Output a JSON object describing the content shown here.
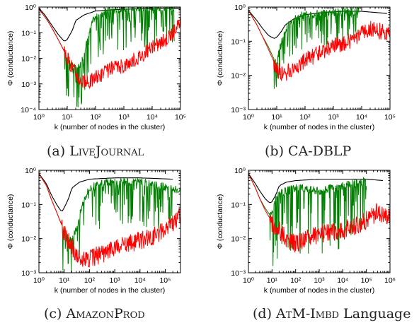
{
  "captions": [
    {
      "prefix": "(a) ",
      "name": "LiveJournal",
      "suffix": ""
    },
    {
      "prefix": "(b) ",
      "name": "",
      "suffix": "CA-DBLP"
    },
    {
      "prefix": "(c) ",
      "name": "AmazonProd",
      "suffix": ""
    },
    {
      "prefix": "(d) ",
      "name": "AtM-Imbd",
      "suffix": " Language"
    }
  ],
  "chart_data": [
    {
      "id": "a",
      "type": "line",
      "xlabel": "k (number of nodes in the cluster)",
      "ylabel": "Φ (conductance)",
      "xscale": "log",
      "yscale": "log",
      "xlim": [
        1,
        100000
      ],
      "ylim": [
        0.0001,
        1
      ],
      "xticks": [
        "10⁰",
        "10¹",
        "10²",
        "10³",
        "10⁴",
        "10⁵"
      ],
      "yticks": [
        "10⁻⁴",
        "10⁻³",
        "10⁻²",
        "10⁻¹",
        "10⁰"
      ],
      "series": [
        {
          "color": "#000000",
          "x": [
            1,
            1.5,
            2,
            3,
            5,
            8,
            10,
            15,
            20,
            40,
            100,
            500,
            3000,
            20000,
            100000
          ],
          "y": [
            0.9,
            0.55,
            0.35,
            0.18,
            0.08,
            0.045,
            0.055,
            0.12,
            0.3,
            0.5,
            0.7,
            0.8,
            0.85,
            0.9,
            0.88
          ]
        },
        {
          "color": "#008000",
          "noise": 1.3,
          "x": [
            1,
            2,
            3,
            5,
            8,
            12,
            20,
            30,
            50,
            80,
            150,
            300,
            1000,
            5000,
            60000
          ],
          "y": [
            0.85,
            0.3,
            0.14,
            0.05,
            0.018,
            0.008,
            0.004,
            0.006,
            0.05,
            0.3,
            0.6,
            0.75,
            0.85,
            0.9,
            0.92
          ]
        },
        {
          "color": "#ff0000",
          "noise": 0.6,
          "x": [
            1,
            2,
            3,
            5,
            8,
            12,
            20,
            30,
            50,
            100,
            300,
            1000,
            3000,
            10000,
            30000,
            100000
          ],
          "y": [
            0.85,
            0.3,
            0.14,
            0.05,
            0.018,
            0.008,
            0.003,
            0.0015,
            0.0012,
            0.002,
            0.004,
            0.006,
            0.012,
            0.03,
            0.06,
            0.25
          ]
        }
      ]
    },
    {
      "id": "b",
      "type": "line",
      "xlabel": "k (number of nodes in the cluster)",
      "ylabel": "Φ (conductance)",
      "xscale": "log",
      "yscale": "log",
      "xlim": [
        1,
        100000
      ],
      "ylim": [
        0.001,
        1
      ],
      "xticks": [
        "10⁰",
        "10¹",
        "10²",
        "10³",
        "10⁴",
        "10⁵"
      ],
      "yticks": [
        "10⁻³",
        "10⁻²",
        "10⁻¹",
        "10⁰"
      ],
      "series": [
        {
          "color": "#000000",
          "x": [
            1,
            2,
            3,
            5,
            8,
            10,
            15,
            20,
            40,
            100,
            500,
            2000,
            10000,
            80000
          ],
          "y": [
            0.8,
            0.4,
            0.25,
            0.15,
            0.12,
            0.13,
            0.2,
            0.3,
            0.45,
            0.6,
            0.7,
            0.75,
            0.75,
            0.65
          ]
        },
        {
          "color": "#008000",
          "noise": 0.8,
          "x": [
            1,
            2,
            3,
            5,
            8,
            10,
            15,
            25,
            50,
            100,
            300,
            1000,
            8000
          ],
          "y": [
            0.8,
            0.3,
            0.15,
            0.07,
            0.03,
            0.025,
            0.1,
            0.3,
            0.5,
            0.6,
            0.65,
            0.7,
            0.75
          ]
        },
        {
          "color": "#ff0000",
          "noise": 0.5,
          "x": [
            1,
            2,
            3,
            5,
            8,
            10,
            15,
            20,
            30,
            50,
            100,
            300,
            1000,
            5000,
            20000,
            100000
          ],
          "y": [
            0.8,
            0.3,
            0.15,
            0.06,
            0.025,
            0.018,
            0.013,
            0.012,
            0.015,
            0.02,
            0.03,
            0.05,
            0.08,
            0.12,
            0.25,
            0.2
          ]
        }
      ]
    },
    {
      "id": "c",
      "type": "line",
      "xlabel": "k (number of nodes in the cluster)",
      "ylabel": "Φ (conductance)",
      "xscale": "log",
      "yscale": "log",
      "xlim": [
        1,
        400000
      ],
      "ylim": [
        0.001,
        1
      ],
      "xticks": [
        "10⁰",
        "10¹",
        "10²",
        "10³",
        "10⁴",
        "10⁵"
      ],
      "yticks": [
        "10⁻³",
        "10⁻²",
        "10⁻¹",
        "10⁰"
      ],
      "series": [
        {
          "color": "#000000",
          "x": [
            1,
            2,
            3,
            5,
            8,
            10,
            15,
            20,
            40,
            100,
            1000,
            10000,
            200000
          ],
          "y": [
            0.8,
            0.4,
            0.2,
            0.1,
            0.06,
            0.08,
            0.15,
            0.3,
            0.45,
            0.55,
            0.6,
            0.6,
            0.55
          ]
        },
        {
          "color": "#008000",
          "noise": 1.0,
          "x": [
            1,
            2,
            3,
            5,
            8,
            12,
            20,
            30,
            60,
            100,
            300,
            1000,
            10000,
            200000,
            400000
          ],
          "y": [
            0.8,
            0.35,
            0.15,
            0.06,
            0.025,
            0.012,
            0.008,
            0.02,
            0.15,
            0.3,
            0.4,
            0.45,
            0.45,
            0.3,
            0.25
          ]
        },
        {
          "color": "#ff0000",
          "noise": 0.55,
          "x": [
            1,
            2,
            3,
            5,
            8,
            12,
            20,
            30,
            60,
            100,
            300,
            1000,
            3000,
            10000,
            50000,
            200000,
            400000
          ],
          "y": [
            0.8,
            0.35,
            0.15,
            0.06,
            0.025,
            0.012,
            0.007,
            0.004,
            0.0025,
            0.003,
            0.004,
            0.006,
            0.008,
            0.01,
            0.015,
            0.03,
            0.05
          ]
        }
      ]
    },
    {
      "id": "d",
      "type": "line",
      "xlabel": "k (number of nodes in the cluster)",
      "ylabel": "Φ (conductance)",
      "xscale": "log",
      "yscale": "log",
      "xlim": [
        1,
        1000000
      ],
      "ylim": [
        0.001,
        1
      ],
      "xticks": [
        "10⁰",
        "10¹",
        "10²",
        "10³",
        "10⁴",
        "10⁵",
        "10⁶"
      ],
      "yticks": [
        "10⁻³",
        "10⁻²",
        "10⁻¹",
        "10⁰"
      ],
      "series": [
        {
          "color": "#000000",
          "x": [
            1,
            2,
            3,
            5,
            8,
            10,
            15,
            20,
            40,
            100,
            1000,
            10000,
            100000,
            500000
          ],
          "y": [
            0.8,
            0.4,
            0.25,
            0.15,
            0.11,
            0.12,
            0.2,
            0.35,
            0.45,
            0.5,
            0.55,
            0.55,
            0.55,
            0.5
          ]
        },
        {
          "color": "#008000",
          "noise": 1.5,
          "x": [
            1,
            2,
            3,
            5,
            8,
            10,
            15,
            20,
            40,
            100,
            300,
            1000,
            3000,
            10000,
            30000,
            100000
          ],
          "y": [
            0.8,
            0.3,
            0.15,
            0.08,
            0.05,
            0.06,
            0.15,
            0.2,
            0.25,
            0.3,
            0.3,
            0.25,
            0.3,
            0.35,
            0.4,
            0.5
          ]
        },
        {
          "color": "#ff0000",
          "noise": 0.55,
          "x": [
            1,
            2,
            3,
            5,
            8,
            10,
            20,
            50,
            100,
            300,
            1000,
            3000,
            10000,
            30000,
            100000,
            300000,
            1000000
          ],
          "y": [
            0.8,
            0.3,
            0.15,
            0.07,
            0.04,
            0.03,
            0.02,
            0.01,
            0.008,
            0.012,
            0.015,
            0.018,
            0.02,
            0.025,
            0.04,
            0.07,
            0.05
          ]
        }
      ]
    }
  ]
}
